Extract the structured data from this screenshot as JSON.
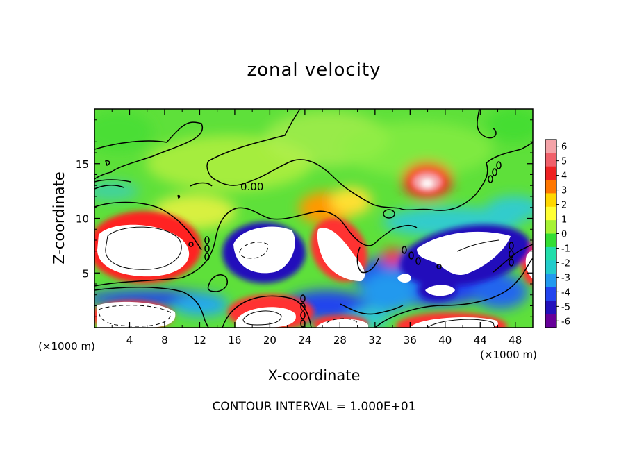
{
  "chart_data": {
    "type": "heatmap",
    "title": "zonal velocity",
    "xlabel": "X-coordinate",
    "ylabel": "Z-coordinate",
    "x_unit_label": "(×1000 m)",
    "y_unit_label": "(×1000 m)",
    "xlim": [
      0,
      50
    ],
    "ylim": [
      0,
      20
    ],
    "x_ticks": [
      4,
      8,
      12,
      16,
      20,
      24,
      28,
      32,
      36,
      40,
      44,
      48
    ],
    "y_ticks": [
      5,
      10,
      15
    ],
    "colorbar": {
      "ticks": [
        6,
        5,
        4,
        3,
        2,
        1,
        0,
        -1,
        -2,
        -3,
        -4,
        -5,
        -6
      ],
      "colors": [
        "#f4a3a8",
        "#f0606a",
        "#ee2222",
        "#ff7700",
        "#ffd700",
        "#ffff33",
        "#a6f233",
        "#33dd33",
        "#22ddaa",
        "#22cccc",
        "#2299ee",
        "#2244ee",
        "#2211bb",
        "#660099"
      ]
    },
    "contour_label": "0.00",
    "contour_interval_text": "CONTOUR INTERVAL = 1.000E+01"
  }
}
